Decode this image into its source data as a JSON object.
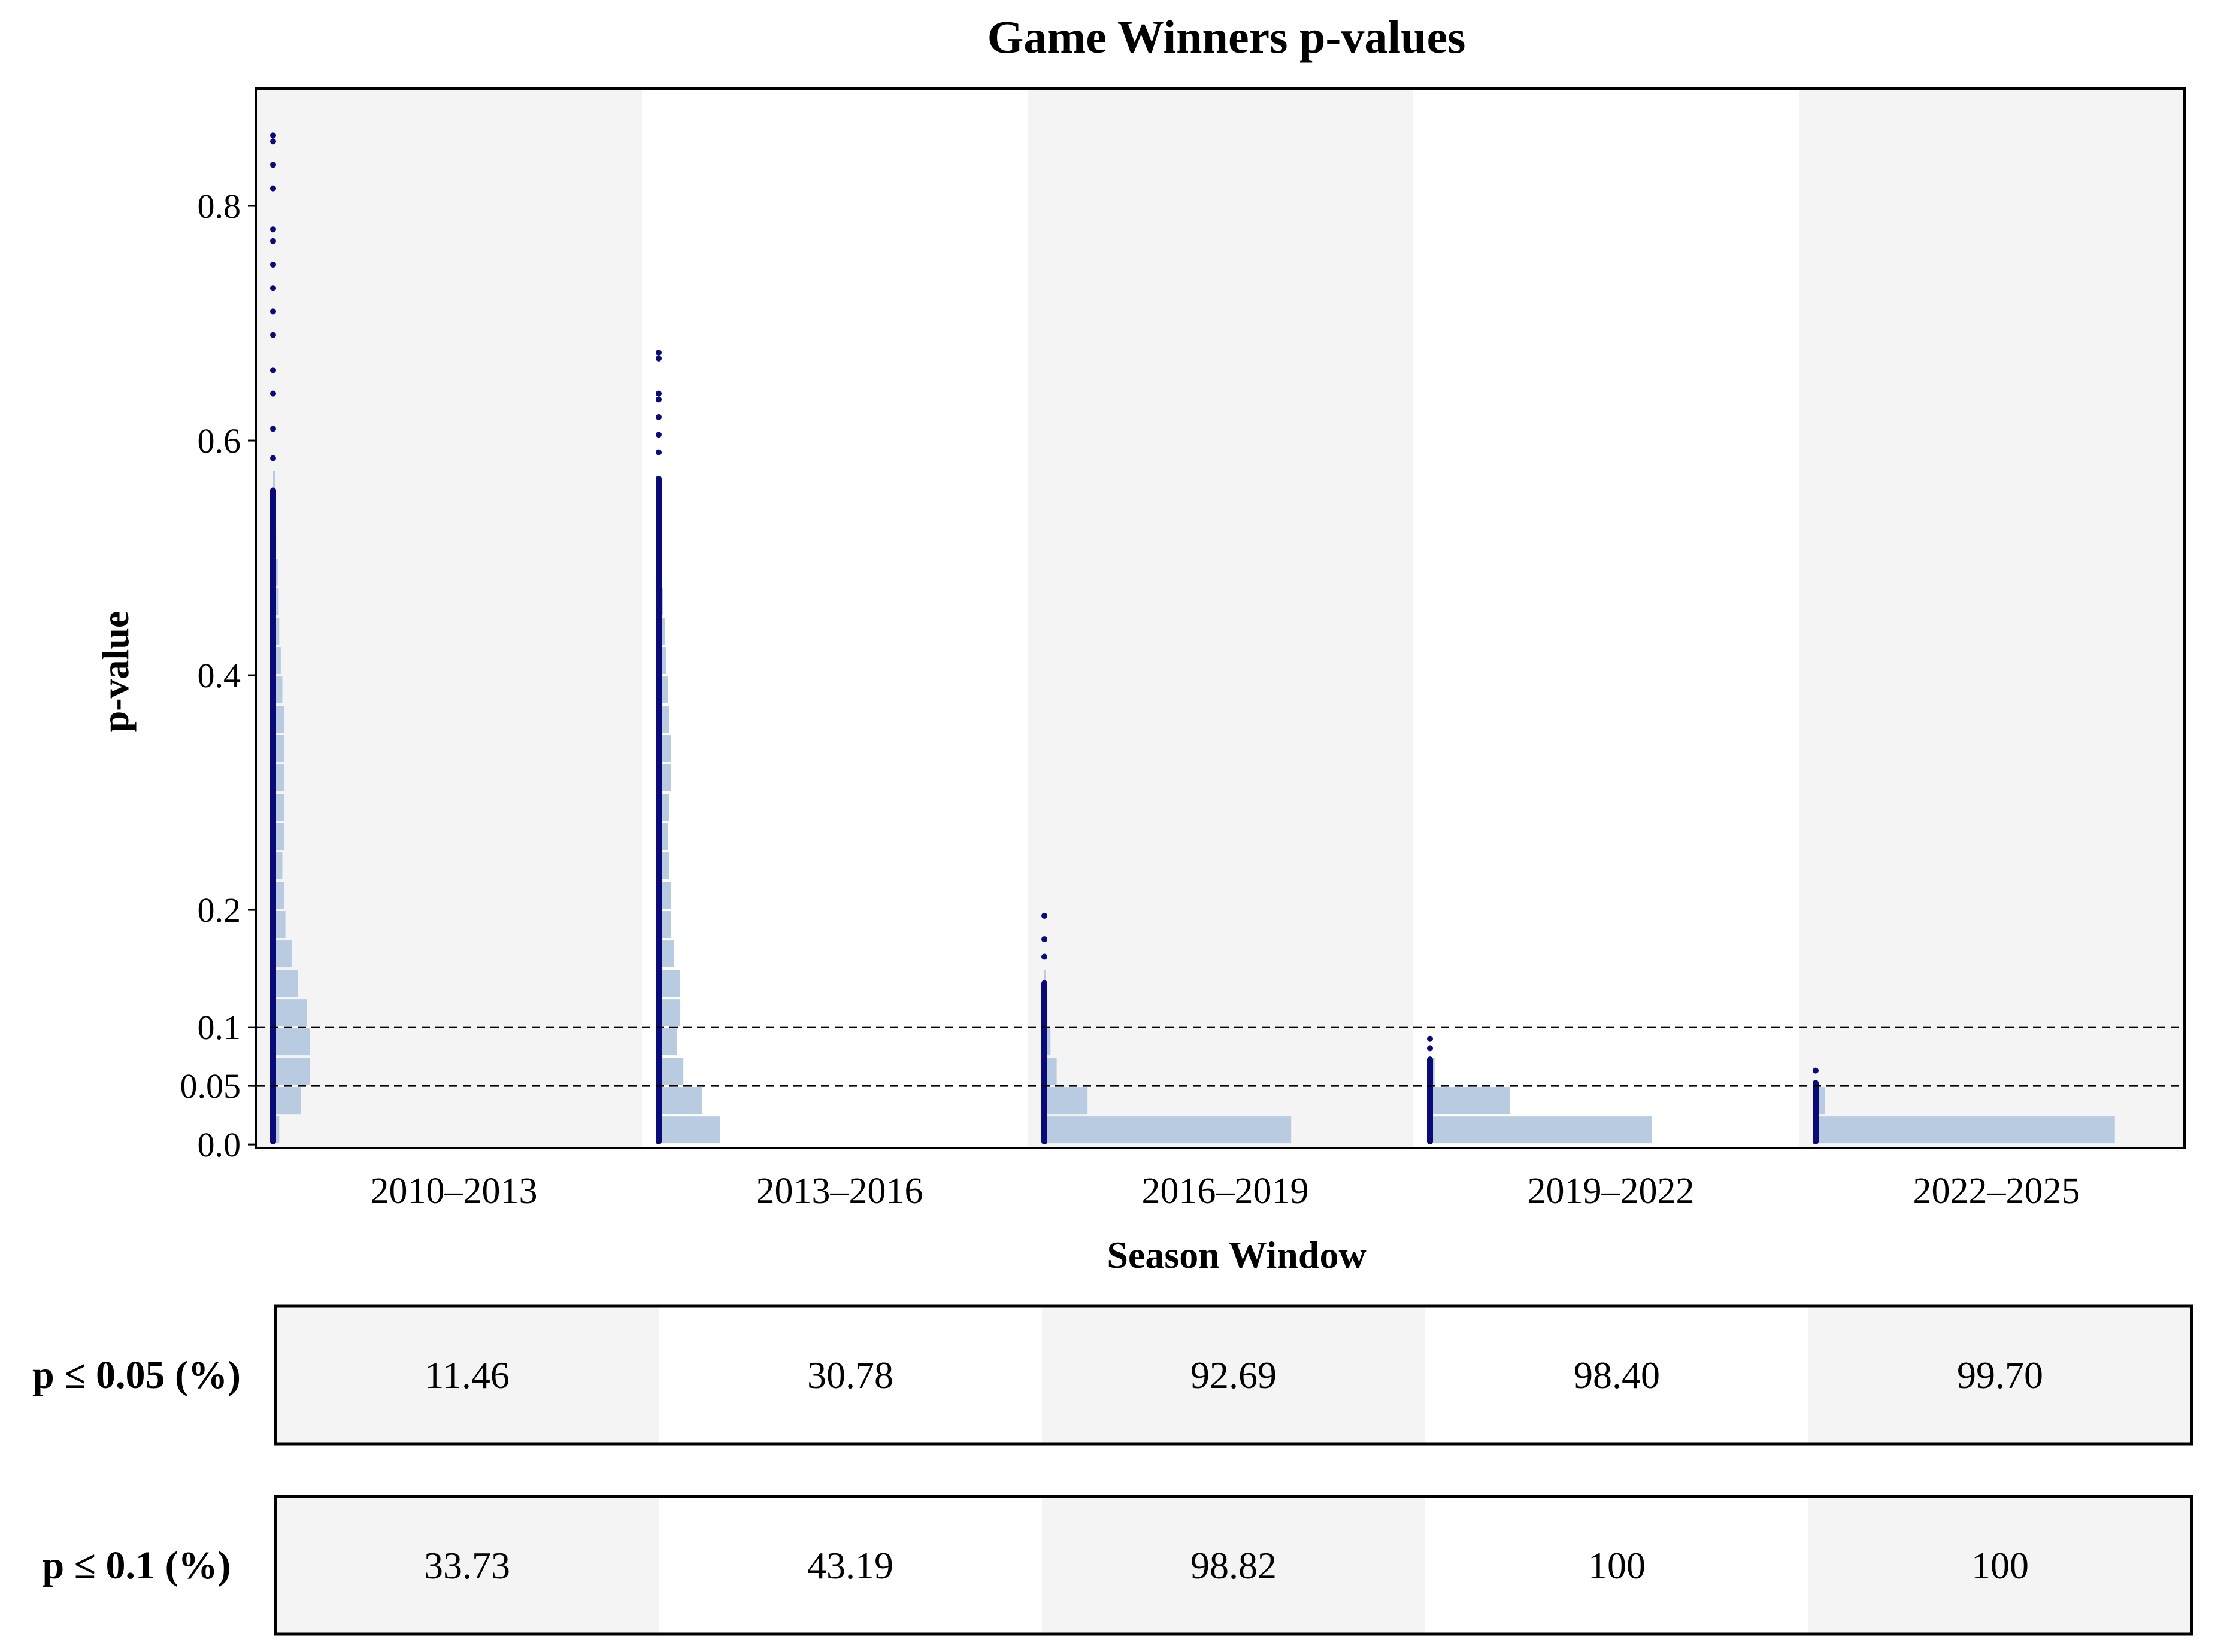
{
  "chart_data": {
    "type": "histogram-strip",
    "title": "Game Winners p-values",
    "xlabel": "Season Window",
    "ylabel": "p-value",
    "categories": [
      "2010–2013",
      "2013–2016",
      "2016–2019",
      "2019–2022",
      "2022–2025"
    ],
    "y_ticks": [
      {
        "value": 0.0,
        "label": "0.0"
      },
      {
        "value": 0.05,
        "label": "0.05"
      },
      {
        "value": 0.1,
        "label": "0.1"
      },
      {
        "value": 0.2,
        "label": "0.2"
      },
      {
        "value": 0.4,
        "label": "0.4"
      },
      {
        "value": 0.6,
        "label": "0.6"
      },
      {
        "value": 0.8,
        "label": "0.8"
      }
    ],
    "ylim": [
      -0.003,
      0.9
    ],
    "reference_lines": [
      0.05,
      0.1
    ],
    "bin_width": 0.025,
    "histogram_max_fraction": 0.8,
    "histograms": [
      [
        0.02,
        0.09,
        0.12,
        0.12,
        0.11,
        0.08,
        0.06,
        0.04,
        0.035,
        0.03,
        0.035,
        0.035,
        0.035,
        0.035,
        0.035,
        0.03,
        0.025,
        0.02,
        0.018,
        0.015,
        0.01,
        0.008,
        0.006
      ],
      [
        0.2,
        0.14,
        0.08,
        0.06,
        0.07,
        0.07,
        0.05,
        0.04,
        0.04,
        0.035,
        0.03,
        0.035,
        0.04,
        0.04,
        0.035,
        0.03,
        0.025,
        0.02,
        0.015,
        0.01,
        0.006
      ],
      [
        0.8,
        0.14,
        0.04,
        0.02,
        0.01,
        0.005
      ],
      [
        0.72,
        0.26,
        0.015
      ],
      [
        0.97,
        0.03
      ]
    ],
    "points": [
      {
        "max": 0.86,
        "outliers": [
          0.86,
          0.855,
          0.835,
          0.815,
          0.78,
          0.77,
          0.75,
          0.73,
          0.71,
          0.69,
          0.66,
          0.64,
          0.61,
          0.585
        ],
        "dense_top": 0.56
      },
      {
        "max": 0.675,
        "outliers": [
          0.675,
          0.67,
          0.64,
          0.635,
          0.62,
          0.605,
          0.59
        ],
        "dense_top": 0.57
      },
      {
        "max": 0.195,
        "outliers": [
          0.195,
          0.175,
          0.16
        ],
        "dense_top": 0.14
      },
      {
        "max": 0.09,
        "outliers": [
          0.09,
          0.082
        ],
        "dense_top": 0.075
      },
      {
        "max": 0.063,
        "outliers": [
          0.063
        ],
        "dense_top": 0.055
      }
    ],
    "table": {
      "rows": [
        {
          "label": "p ≤ 0.05 (%)",
          "values": [
            "11.46",
            "30.78",
            "92.69",
            "98.40",
            "99.70"
          ]
        },
        {
          "label": "p ≤ 0.1 (%)",
          "values": [
            "33.73",
            "43.19",
            "98.82",
            "100",
            "100"
          ]
        }
      ]
    },
    "colors": {
      "panel_shade": "#f4f4f4",
      "histogram": "#b8cbe0",
      "points": "#0a0a78",
      "axis": "#000000"
    }
  }
}
